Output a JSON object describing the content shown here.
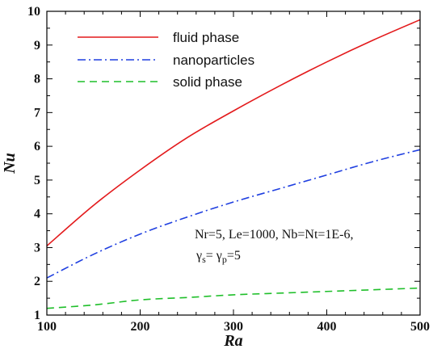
{
  "chart_data": {
    "type": "line",
    "title": "",
    "xlabel": "Ra",
    "ylabel": "Nu",
    "xlim": [
      100,
      500
    ],
    "ylim": [
      1,
      10
    ],
    "xticks": [
      100,
      200,
      300,
      400,
      500
    ],
    "yticks": [
      1,
      2,
      3,
      4,
      5,
      6,
      7,
      8,
      9,
      10
    ],
    "xtick_labels": [
      "100",
      "200",
      "300",
      "400",
      "500"
    ],
    "ytick_labels": [
      "1",
      "2",
      "3",
      "4",
      "5",
      "6",
      "7",
      "8",
      "9",
      "10"
    ],
    "grid": false,
    "legend_position": "top-left",
    "x": [
      100,
      150,
      200,
      250,
      300,
      350,
      400,
      450,
      500
    ],
    "series": [
      {
        "name": "fluid phase",
        "color": "#e31a1c",
        "line_style": "solid",
        "values": [
          3.05,
          4.25,
          5.3,
          6.25,
          7.05,
          7.8,
          8.5,
          9.15,
          9.75
        ]
      },
      {
        "name": "nanoparticles",
        "color": "#1f3fe0",
        "line_style": "dash-dot",
        "values": [
          2.1,
          2.8,
          3.4,
          3.9,
          4.35,
          4.75,
          5.15,
          5.55,
          5.9
        ]
      },
      {
        "name": "solid phase",
        "color": "#1fbf2a",
        "line_style": "dashed",
        "values": [
          1.2,
          1.3,
          1.45,
          1.52,
          1.6,
          1.65,
          1.7,
          1.75,
          1.8
        ]
      }
    ],
    "annotation": {
      "line1": "Nr=5, Le=1000, Nb=Nt=1E-6,",
      "gamma_s": "γ",
      "gamma_s_sub": "s",
      "equals1": "= ",
      "gamma_p": "γ",
      "gamma_p_sub": "p",
      "equals2": "=5"
    }
  }
}
